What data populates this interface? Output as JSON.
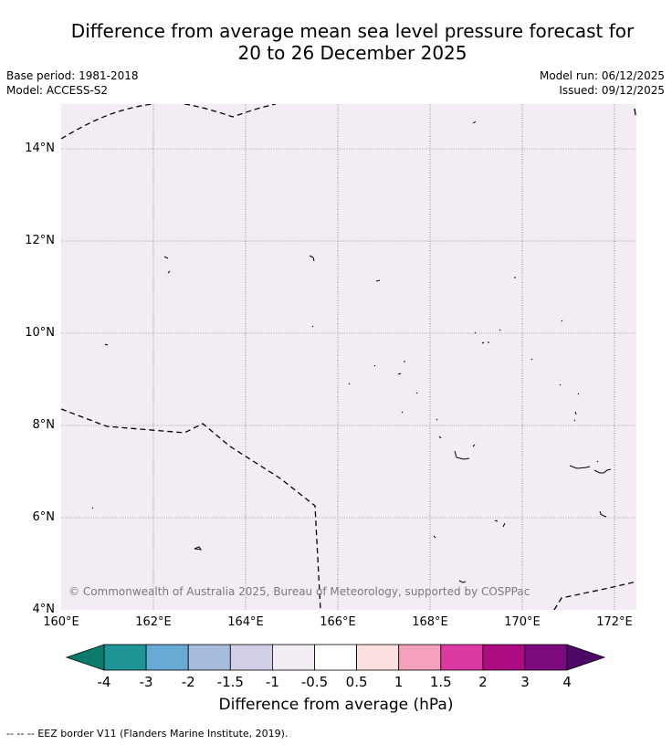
{
  "title_line1": "Difference from average mean sea level pressure forecast for",
  "title_line2": "20 to 26 December 2025",
  "base_period": "Base period: 1981-2018",
  "model": "Model: ACCESS-S2",
  "model_run": "Model run: 06/12/2025",
  "issued": "Issued: 09/12/2025",
  "map": {
    "lat_labels": [
      "14°N",
      "12°N",
      "10°N",
      "8°N",
      "6°N",
      "4°N"
    ],
    "lon_labels": [
      "160°E",
      "162°E",
      "164°E",
      "166°E",
      "168°E",
      "170°E",
      "172°E"
    ],
    "copyright": "© Commonwealth of Australia 2025, Bureau of Meteorology, supported by COSPPac",
    "background_color": "#f3ecf5"
  },
  "colorbar": {
    "labels": [
      "-4",
      "-3",
      "-2",
      "-1.5",
      "-1",
      "-0.5",
      "0.5",
      "1",
      "1.5",
      "2",
      "3",
      "4"
    ],
    "colors": [
      "#0b7b6b",
      "#1f9496",
      "#67abd5",
      "#a7bbdc",
      "#d0cfe5",
      "#f3ecf5",
      "#ffffff",
      "#fde0e0",
      "#f6a1bb",
      "#db3aa0",
      "#ac0b82",
      "#7b0a7f",
      "#4e0766"
    ],
    "title": "Difference from average (hPa)"
  },
  "footer": "--  --  -- EEZ border V11 (Flanders Marine Institute, 2019)."
}
